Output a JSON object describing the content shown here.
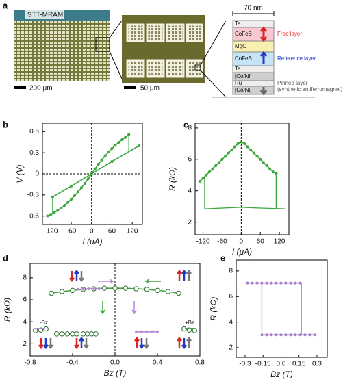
{
  "panel_a": {
    "letter": "a",
    "image_1_title": "STT-MRAM",
    "scale_1": "200 μm",
    "scale_2": "50 μm",
    "width": "70 nm",
    "layers": [
      "Ta",
      "CoFeB",
      "MgO",
      "CoFeB",
      "Ta",
      "[Co/Ni]",
      "Ru",
      "[Co/Ni]"
    ],
    "free_layer": "Free layer",
    "reference_layer": "Reference layer",
    "pinned_layer": "Pinned layer",
    "pinned_note": "(synthetic antiferromagnet)"
  },
  "chart_data": [
    {
      "type": "line",
      "letter": "b",
      "x_label": "I (μA)",
      "y_label": "V (V)",
      "xlim": [
        -145,
        150
      ],
      "ylim": [
        -0.72,
        0.72
      ],
      "xticks": [
        -120,
        -60,
        0,
        60,
        120
      ],
      "yticks": [
        -0.6,
        -0.3,
        0,
        0.3,
        0.6
      ],
      "zero_line_x": true,
      "zero_line_y": true,
      "series": [
        {
          "color": "#3aa53a",
          "marker": "dot",
          "x": [
            -130,
            -120,
            -110,
            -100,
            -90,
            -80,
            -70,
            -60,
            -50,
            -40,
            -30,
            -20,
            -10,
            0,
            10,
            20,
            30,
            40,
            50,
            60,
            70,
            80,
            90,
            100,
            110
          ],
          "values": [
            -0.598,
            -0.576,
            -0.55,
            -0.52,
            -0.486,
            -0.448,
            -0.406,
            -0.36,
            -0.31,
            -0.256,
            -0.198,
            -0.136,
            -0.07,
            0,
            0.07,
            0.136,
            0.198,
            0.256,
            0.31,
            0.36,
            0.406,
            0.448,
            0.486,
            0.52,
            0.561
          ]
        },
        {
          "color": "#3aa53a",
          "marker": "dot",
          "x": [
            -115,
            -60,
            0,
            60,
            140
          ],
          "values": [
            -0.328,
            -0.174,
            0,
            0.174,
            0.399
          ]
        },
        {
          "color": "#3aa53a",
          "marker": "none",
          "x": [
            -115,
            -115
          ],
          "values": [
            -0.328,
            -0.564
          ]
        },
        {
          "color": "#3aa53a",
          "marker": "none",
          "x": [
            110,
            110
          ],
          "values": [
            0.561,
            0.319
          ]
        }
      ]
    },
    {
      "type": "line",
      "letter": "c",
      "x_label": "I (μA)",
      "y_label": "R (kΩ)",
      "xlim": [
        -145,
        150
      ],
      "ylim": [
        1.2,
        8.3
      ],
      "xticks": [
        -120,
        -60,
        0,
        60,
        120
      ],
      "yticks": [
        2,
        4,
        6,
        8
      ],
      "zero_line_x": true,
      "zero_line_y": false,
      "series": [
        {
          "color": "#3aa53a",
          "marker": "dot",
          "x": [
            -130,
            -120,
            -110,
            -100,
            -90,
            -80,
            -70,
            -60,
            -50,
            -40,
            -30,
            -20,
            -10,
            0,
            10,
            20,
            30,
            40,
            50,
            60,
            70,
            80,
            90,
            100,
            110
          ],
          "values": [
            4.6,
            4.8,
            5.0,
            5.2,
            5.4,
            5.6,
            5.8,
            6.0,
            6.2,
            6.4,
            6.6,
            6.8,
            7.0,
            7.1,
            7.0,
            6.8,
            6.6,
            6.4,
            6.2,
            6.0,
            5.8,
            5.6,
            5.4,
            5.2,
            5.1
          ]
        },
        {
          "color": "#3aa53a",
          "marker": "none",
          "x": [
            -115,
            -60,
            0,
            60,
            140
          ],
          "values": [
            2.85,
            2.9,
            2.95,
            2.9,
            2.85
          ]
        },
        {
          "color": "#3aa53a",
          "marker": "none",
          "x": [
            -115,
            -115
          ],
          "values": [
            2.85,
            4.9
          ]
        },
        {
          "color": "#3aa53a",
          "marker": "none",
          "x": [
            110,
            110
          ],
          "values": [
            5.1,
            2.9
          ]
        }
      ]
    },
    {
      "type": "line",
      "letter": "d",
      "x_label": "Bz (T)",
      "y_label": "R (kΩ)",
      "xlim": [
        -0.8,
        0.8
      ],
      "ylim": [
        0.9,
        9.3
      ],
      "xticks": [
        -0.8,
        -0.4,
        {
          "value": 0,
          "label": "0.0"
        },
        0.4,
        0.8
      ],
      "yticks": [
        2,
        4,
        6,
        8
      ],
      "zero_line_x": true,
      "zero_line_y": false,
      "annotations": [
        "-Bz",
        "+Bz"
      ],
      "series": [
        {
          "color": "#3aa53a",
          "marker": "circle",
          "x": [
            -0.6,
            -0.5,
            -0.4,
            -0.3,
            -0.2,
            -0.1,
            0,
            0.1,
            0.2,
            0.3,
            0.4,
            0.5,
            0.6
          ],
          "values": [
            6.6,
            6.75,
            6.85,
            6.95,
            7.0,
            7.05,
            7.05,
            7.05,
            7.0,
            6.95,
            6.85,
            6.75,
            6.6
          ]
        },
        {
          "color": "#3aa53a",
          "marker": "circle",
          "x": [
            -0.55,
            -0.5,
            -0.45,
            -0.4,
            -0.36
          ],
          "values": [
            2.9,
            2.9,
            2.9,
            2.9,
            2.9
          ]
        },
        {
          "color": "#3aa53a",
          "marker": "circle",
          "x": [
            -0.3,
            -0.26,
            -0.22,
            -0.18
          ],
          "values": [
            2.9,
            2.9,
            2.9,
            2.9
          ]
        },
        {
          "color": "#3aa53a",
          "marker": "circle",
          "x": [
            -0.75,
            -0.7,
            -0.65
          ],
          "values": [
            3.2,
            3.25,
            3.35
          ]
        },
        {
          "color": "#3aa53a",
          "marker": "circle",
          "x": [
            0.65,
            0.7,
            0.75
          ],
          "values": [
            3.35,
            3.25,
            3.2
          ]
        },
        {
          "color": "#b388d6",
          "marker": "dot",
          "x": [
            0.2,
            0.25,
            0.3,
            0.35,
            0.4
          ],
          "values": [
            3.1,
            3.1,
            3.1,
            3.1,
            3.1
          ]
        },
        {
          "color": "#b388d6",
          "marker": "dot",
          "x": [
            -0.35,
            -0.3,
            -0.25,
            -0.2,
            -0.15
          ],
          "values": [
            6.95,
            6.97,
            7.0,
            7.0,
            7.0
          ]
        }
      ]
    },
    {
      "type": "line",
      "letter": "e",
      "x_label": "Bz (T)",
      "y_label": "R (kΩ)",
      "xlim": [
        -0.374,
        0.386
      ],
      "ylim": [
        1.25,
        8.85
      ],
      "xticks": [
        -0.3,
        -0.15,
        {
          "value": 0,
          "label": "0.0"
        },
        0.15,
        0.3
      ],
      "yticks": [
        2,
        4,
        6,
        8
      ],
      "zero_line_x": false,
      "zero_line_y": false,
      "series": [
        {
          "color": "#a77cc9",
          "marker": "dot",
          "x": [
            -0.28,
            -0.24,
            -0.2,
            -0.16,
            -0.12,
            -0.08,
            -0.04,
            0,
            0.04,
            0.08,
            0.12,
            0.16
          ],
          "values": [
            7.05,
            7.05,
            7.05,
            7.05,
            7.05,
            7.05,
            7.05,
            7.05,
            7.05,
            7.05,
            7.05,
            7.05
          ]
        },
        {
          "color": "#a77cc9",
          "marker": "dot",
          "x": [
            -0.16,
            -0.12,
            -0.08,
            -0.04,
            0,
            0.04,
            0.08,
            0.12,
            0.16,
            0.2,
            0.24,
            0.28
          ],
          "values": [
            3.0,
            3.0,
            3.0,
            3.0,
            3.0,
            3.0,
            3.0,
            3.0,
            3.0,
            3.0,
            3.0,
            3.0
          ]
        },
        {
          "color": "#a77cc9",
          "marker": "none",
          "x": [
            0.17,
            0.17
          ],
          "values": [
            7.05,
            3.0
          ]
        },
        {
          "color": "#a77cc9",
          "marker": "none",
          "x": [
            -0.16,
            -0.16
          ],
          "values": [
            3.0,
            7.05
          ]
        }
      ]
    }
  ]
}
